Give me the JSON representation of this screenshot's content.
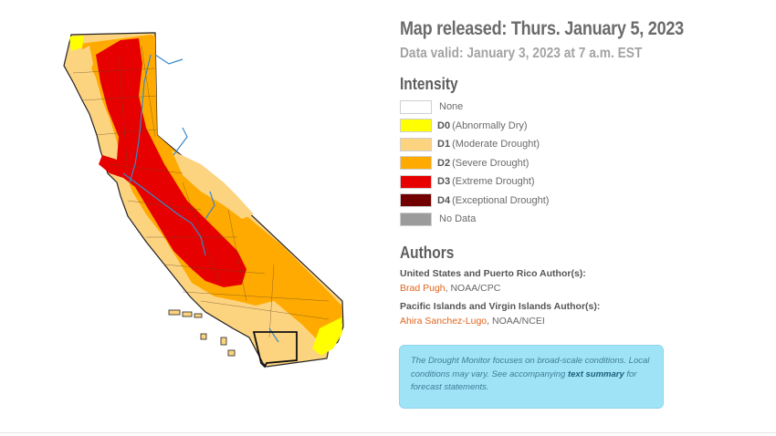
{
  "title": "Map released: Thurs. January 5, 2023",
  "subtitle": "Data valid: January 3, 2023 at 7 a.m. EST",
  "legend": {
    "heading": "Intensity",
    "items": [
      {
        "code": "",
        "label": "None",
        "color": "#ffffff"
      },
      {
        "code": "D0",
        "label": "(Abnormally Dry)",
        "color": "#ffff00"
      },
      {
        "code": "D1",
        "label": "(Moderate Drought)",
        "color": "#fcd37f"
      },
      {
        "code": "D2",
        "label": "(Severe Drought)",
        "color": "#ffaa00"
      },
      {
        "code": "D3",
        "label": "(Extreme Drought)",
        "color": "#e60000"
      },
      {
        "code": "D4",
        "label": "(Exceptional Drought)",
        "color": "#730000"
      },
      {
        "code": "",
        "label": "No Data",
        "color": "#9b9b9b"
      }
    ]
  },
  "authors": {
    "heading": "Authors",
    "us_heading": "United States and Puerto Rico Author(s):",
    "us_name": "Brad Pugh",
    "us_org": ", NOAA/CPC",
    "pi_heading": "Pacific Islands and Virgin Islands Author(s):",
    "pi_name": "Ahira Sanchez-Lugo",
    "pi_org": ", NOAA/NCEI"
  },
  "note": {
    "text1": "The Drought Monitor focuses on broad-scale conditions. Local conditions may vary. See accompanying ",
    "link": "text summary",
    "text2": " for forecast statements."
  }
}
